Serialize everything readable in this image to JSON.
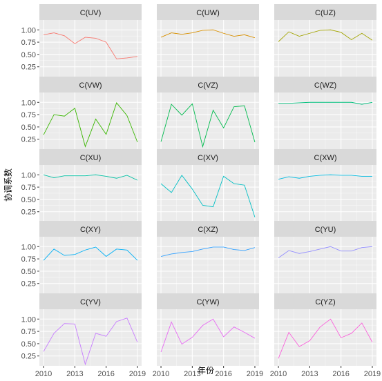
{
  "chart_data": {
    "type": "line",
    "layout": "facet_wrap",
    "ncol": 3,
    "xlabel": "年份",
    "ylabel": "协调系数",
    "x": [
      2010,
      2011,
      2012,
      2013,
      2014,
      2015,
      2016,
      2017,
      2018,
      2019
    ],
    "x_ticks": [
      2010,
      2013,
      2016,
      2019
    ],
    "x_range": [
      2009.6,
      2019.4
    ],
    "y_ticks": [
      0.25,
      0.5,
      0.75,
      1.0
    ],
    "y_tick_labels": [
      "0.25",
      "0.50",
      "0.75",
      "1.00"
    ],
    "y_range": [
      0.05,
      1.2
    ],
    "panels": [
      {
        "title": "C(UV)",
        "color": "#F8766D",
        "values": [
          0.9,
          0.94,
          0.88,
          0.72,
          0.85,
          0.83,
          0.75,
          0.41,
          0.43,
          0.46
        ]
      },
      {
        "title": "C(UW)",
        "color": "#D89000",
        "values": [
          0.85,
          0.94,
          0.91,
          0.94,
          0.99,
          1.0,
          0.93,
          0.87,
          0.9,
          0.84
        ]
      },
      {
        "title": "C(UZ)",
        "color": "#A3A500",
        "values": [
          0.76,
          0.96,
          0.87,
          0.93,
          0.99,
          1.0,
          0.95,
          0.8,
          0.93,
          0.79
        ]
      },
      {
        "title": "C(VW)",
        "color": "#39B600",
        "values": [
          0.34,
          0.75,
          0.72,
          0.88,
          0.1,
          0.66,
          0.35,
          0.99,
          0.73,
          0.19
        ]
      },
      {
        "title": "C(VZ)",
        "color": "#00BB4E",
        "values": [
          0.2,
          0.96,
          0.74,
          0.97,
          0.1,
          0.84,
          0.48,
          0.91,
          0.93,
          0.19
        ]
      },
      {
        "title": "C(WZ)",
        "color": "#00BF7D",
        "values": [
          0.98,
          0.98,
          0.99,
          1.0,
          1.0,
          1.0,
          1.0,
          1.0,
          0.96,
          1.0
        ]
      },
      {
        "title": "C(XU)",
        "color": "#00C1A3",
        "values": [
          1.0,
          0.94,
          0.98,
          0.98,
          0.98,
          1.0,
          0.97,
          0.93,
          0.99,
          0.89
        ]
      },
      {
        "title": "C(XV)",
        "color": "#00BFC4",
        "values": [
          0.82,
          0.64,
          0.99,
          0.71,
          0.38,
          0.35,
          0.97,
          0.82,
          0.79,
          0.14
        ]
      },
      {
        "title": "C(XW)",
        "color": "#00BAE0",
        "values": [
          0.91,
          0.96,
          0.93,
          0.97,
          0.99,
          1.0,
          0.99,
          0.99,
          0.97,
          0.97
        ]
      },
      {
        "title": "C(XY)",
        "color": "#00B0F6",
        "values": [
          0.72,
          0.95,
          0.82,
          0.84,
          0.93,
          0.99,
          0.8,
          0.95,
          0.93,
          0.72
        ]
      },
      {
        "title": "C(XZ)",
        "color": "#35A2FF",
        "values": [
          0.8,
          0.85,
          0.88,
          0.9,
          0.95,
          0.99,
          0.99,
          0.94,
          0.92,
          0.98
        ]
      },
      {
        "title": "C(YU)",
        "color": "#9590FF",
        "values": [
          0.77,
          0.92,
          0.86,
          0.9,
          0.95,
          1.0,
          0.91,
          0.91,
          0.98,
          1.0
        ]
      },
      {
        "title": "C(YV)",
        "color": "#C77CFF",
        "values": [
          0.34,
          0.71,
          0.91,
          0.9,
          0.08,
          0.71,
          0.65,
          0.95,
          1.02,
          0.53
        ]
      },
      {
        "title": "C(YW)",
        "color": "#E76BF3",
        "values": [
          0.33,
          0.94,
          0.49,
          0.63,
          0.87,
          1.0,
          0.64,
          0.84,
          0.73,
          0.61
        ]
      },
      {
        "title": "C(YZ)",
        "color": "#FA62DB",
        "values": [
          0.2,
          0.73,
          0.44,
          0.56,
          0.84,
          1.0,
          0.62,
          0.71,
          0.92,
          0.53
        ]
      }
    ]
  }
}
